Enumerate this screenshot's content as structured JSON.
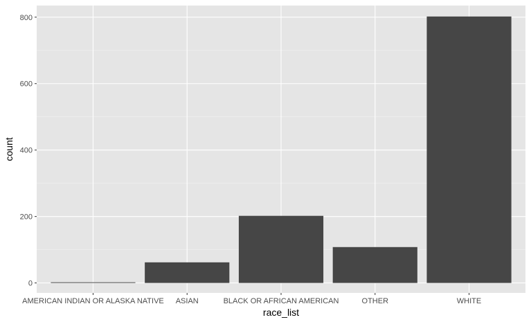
{
  "chart_data": {
    "type": "bar",
    "categories": [
      "AMERICAN INDIAN OR ALASKA NATIVE",
      "ASIAN",
      "BLACK OR AFRICAN AMERICAN",
      "OTHER",
      "WHITE"
    ],
    "values": [
      2,
      62,
      202,
      108,
      802
    ],
    "xlabel": "race_list",
    "ylabel": "count",
    "ylim": [
      -30,
      835
    ],
    "yticks": [
      0,
      200,
      400,
      600,
      800
    ],
    "grid": true,
    "colors": {
      "panel_background": "#e5e5e5",
      "grid_major": "#ffffff",
      "grid_minor": "#f2f2f2",
      "bar_fill": "#464646",
      "tick_text": "#4d4d4d",
      "axis_title": "#000000"
    }
  }
}
